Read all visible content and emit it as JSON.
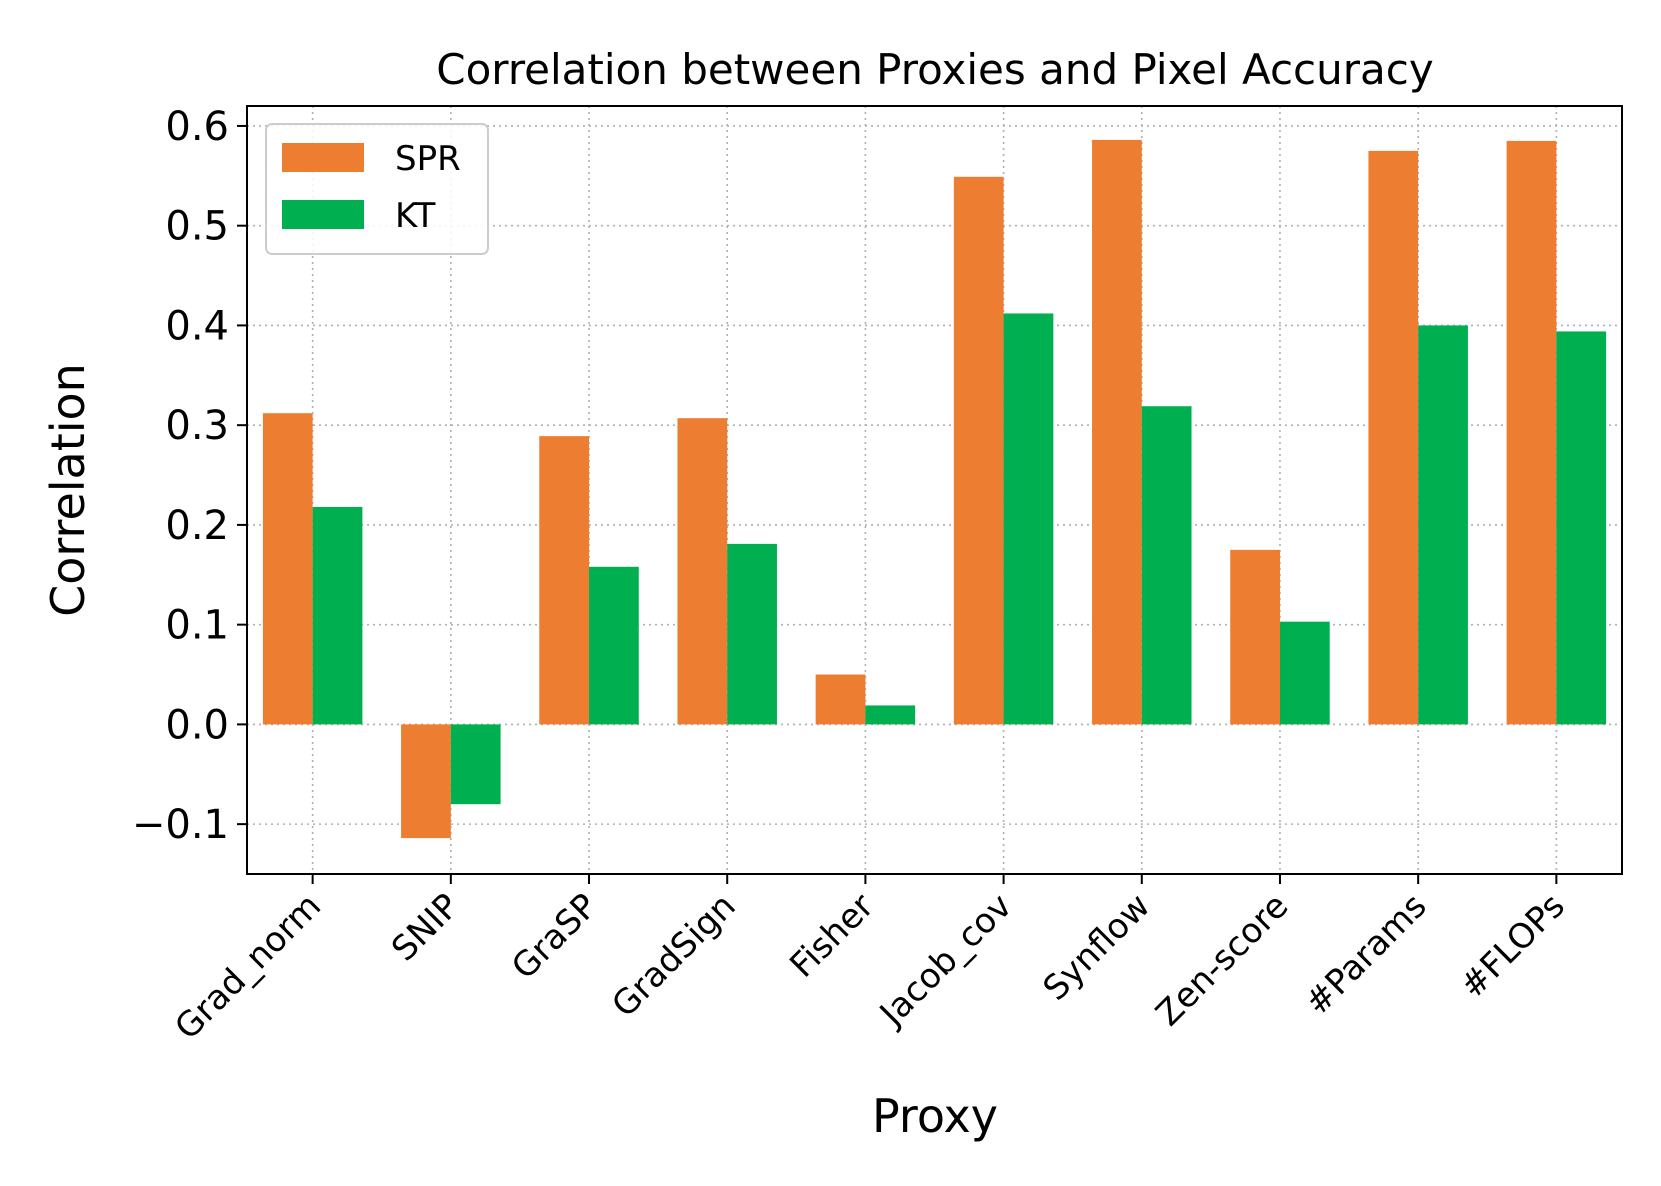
{
  "chart_data": {
    "type": "bar",
    "title": "Correlation between Proxies and Pixel Accuracy",
    "xlabel": "Proxy",
    "ylabel": "Correlation",
    "ylim": [
      -0.15,
      0.62
    ],
    "yticks": [
      -0.1,
      0.0,
      0.1,
      0.2,
      0.3,
      0.4,
      0.5,
      0.6
    ],
    "ytick_labels": [
      "−0.1",
      "0.0",
      "0.1",
      "0.2",
      "0.3",
      "0.4",
      "0.5",
      "0.6"
    ],
    "grid": true,
    "legend_position": "top-left",
    "categories": [
      "Grad_norm",
      "SNIP",
      "GraSP",
      "GradSign",
      "Fisher",
      "Jacob_cov",
      "Synflow",
      "Zen-score",
      "#Params",
      "#FLOPs"
    ],
    "series": [
      {
        "name": "SPR",
        "color": "#ED7D31",
        "values": [
          0.312,
          -0.114,
          0.289,
          0.307,
          0.05,
          0.549,
          0.586,
          0.175,
          0.575,
          0.585
        ]
      },
      {
        "name": "KT",
        "color": "#00B050",
        "values": [
          0.218,
          -0.08,
          0.158,
          0.181,
          0.019,
          0.412,
          0.319,
          0.103,
          0.4,
          0.394
        ]
      }
    ]
  }
}
